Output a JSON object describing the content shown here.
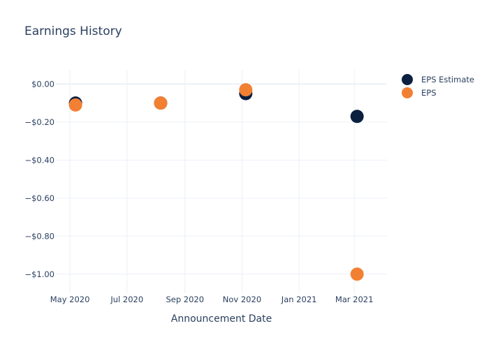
{
  "chart_data": {
    "type": "scatter",
    "title": "Earnings History",
    "xlabel": "Announcement Date",
    "ylabel": "",
    "x_axis": {
      "type": "date",
      "range": [
        "2020-04-16",
        "2021-04-05"
      ],
      "ticks": [
        {
          "date": "2020-05-01",
          "label": "May 2020"
        },
        {
          "date": "2020-07-01",
          "label": "Jul 2020"
        },
        {
          "date": "2020-09-01",
          "label": "Sep 2020"
        },
        {
          "date": "2020-11-01",
          "label": "Nov 2020"
        },
        {
          "date": "2021-01-01",
          "label": "Jan 2021"
        },
        {
          "date": "2021-03-01",
          "label": "Mar 2021"
        }
      ]
    },
    "y_axis": {
      "range": [
        -1.1,
        0.075
      ],
      "ticks": [
        {
          "value": 0,
          "label": "$0.00"
        },
        {
          "value": -0.2,
          "label": "−$0.20"
        },
        {
          "value": -0.4,
          "label": "−$0.40"
        },
        {
          "value": -0.6,
          "label": "−$0.60"
        },
        {
          "value": -0.8,
          "label": "−$0.80"
        },
        {
          "value": -1.0,
          "label": "−$1.00"
        }
      ]
    },
    "grid": true,
    "legend_position": "top-right",
    "series": [
      {
        "name": "EPS Estimate",
        "color": "#0b1f3f",
        "points": [
          {
            "x": "2020-05-07",
            "y": -0.1
          },
          {
            "x": "2020-08-06",
            "y": -0.1
          },
          {
            "x": "2020-11-05",
            "y": -0.05
          },
          {
            "x": "2021-03-04",
            "y": -0.17
          }
        ]
      },
      {
        "name": "EPS",
        "color": "#f28033",
        "points": [
          {
            "x": "2020-05-07",
            "y": -0.11
          },
          {
            "x": "2020-08-06",
            "y": -0.1
          },
          {
            "x": "2020-11-05",
            "y": -0.03
          },
          {
            "x": "2021-03-04",
            "y": -1.0
          }
        ]
      }
    ]
  }
}
